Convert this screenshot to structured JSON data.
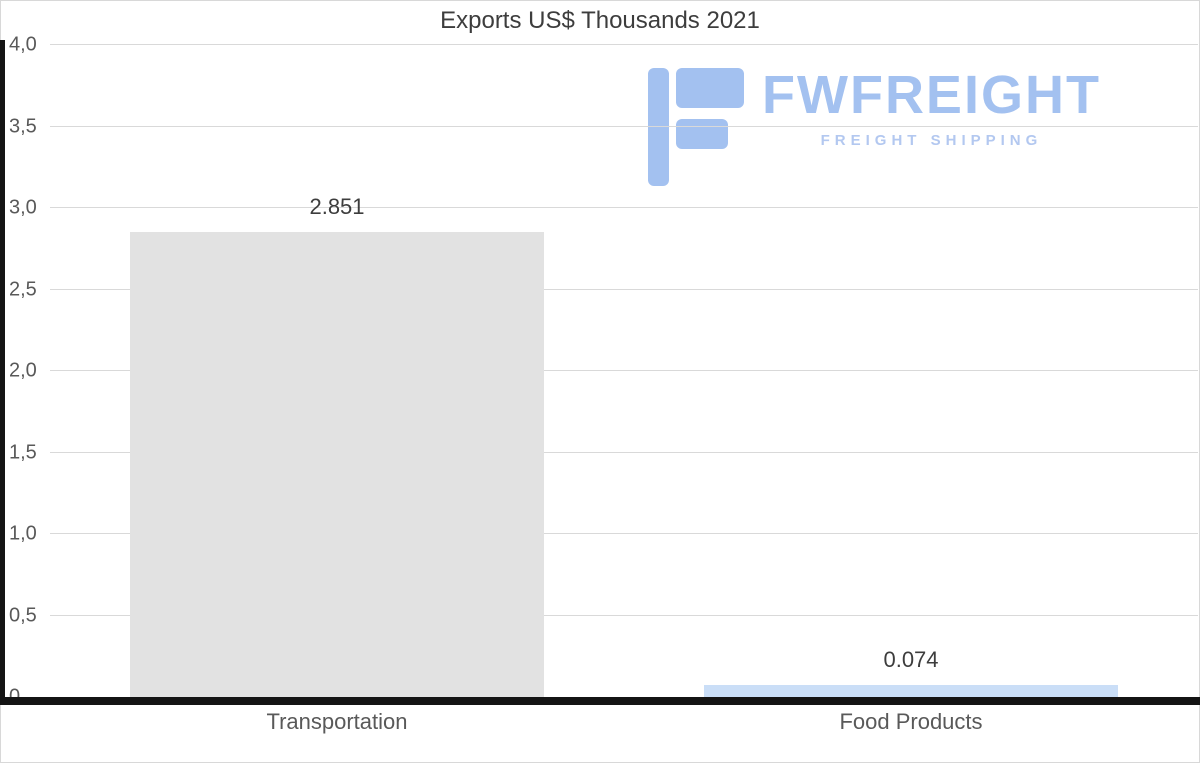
{
  "chart_data": {
    "type": "bar",
    "title": "Exports US$ Thousands 2021",
    "categories": [
      "Transportation",
      "Food Products"
    ],
    "values": [
      2.851,
      0.074
    ],
    "value_labels": [
      "2.851",
      "0.074"
    ],
    "bar_colors": [
      "#e2e2e2",
      "#cadef7"
    ],
    "ylim": [
      0,
      4
    ],
    "yticks": [
      {
        "value": 0,
        "label": "0"
      },
      {
        "value": 0.5,
        "label": "0,5"
      },
      {
        "value": 1,
        "label": "1,0"
      },
      {
        "value": 1.5,
        "label": "1,5"
      },
      {
        "value": 2,
        "label": "2,0"
      },
      {
        "value": 2.5,
        "label": "2,5"
      },
      {
        "value": 3,
        "label": "3,0"
      },
      {
        "value": 3.5,
        "label": "3,5"
      },
      {
        "value": 4,
        "label": "4,0"
      }
    ],
    "grid": true,
    "legend": false,
    "xlabel": "",
    "ylabel": ""
  },
  "logo": {
    "brand": "FWFREIGHT",
    "tagline": "FREIGHT SHIPPING",
    "color": "#a3c1f0"
  },
  "colors": {
    "axis": "#141414",
    "gridline": "#d9d9d9",
    "title_text": "#3d3d3d",
    "tick_text": "#595959"
  }
}
